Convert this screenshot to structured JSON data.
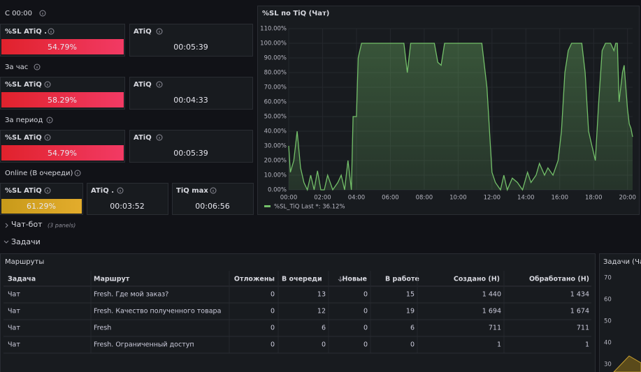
{
  "sections": {
    "today": {
      "title": "С 00:00",
      "sl_title": "%SL ATiQ .",
      "sl_value": "54.79%",
      "atiq_title": "ATiQ",
      "atiq_value": "00:05:39"
    },
    "hour": {
      "title": "За час",
      "sl_title": "%SL ATiQ",
      "sl_value": "58.29%",
      "atiq_title": "ATiQ",
      "atiq_value": "00:04:33"
    },
    "period": {
      "title": "За период",
      "sl_title": "%SL ATiQ",
      "sl_value": "54.79%",
      "atiq_title": "ATiQ",
      "atiq_value": "00:05:39"
    },
    "online": {
      "title": "Online (В очереди)",
      "sl_title": "%SL ATiQ",
      "sl_value": "61.29%",
      "atiq_title": "ATiQ .",
      "atiq_value": "00:03:52",
      "tiq_title": "TiQ max",
      "tiq_value": "00:06:56"
    }
  },
  "rows": {
    "chatbot": "Чат-бот",
    "chatbot_note": "(3 panels)",
    "tasks": "Задачи"
  },
  "chart_data": {
    "type": "line",
    "title": "%SL по TiQ (Чат)",
    "x": [
      0,
      0.1,
      0.3,
      0.5,
      0.7,
      0.9,
      1.1,
      1.3,
      1.5,
      1.7,
      1.9,
      2.1,
      2.3,
      2.6,
      2.9,
      3.1,
      3.3,
      3.5,
      3.7,
      3.8,
      4.0,
      4.1,
      4.3,
      5.0,
      6.0,
      6.8,
      7.0,
      7.2,
      8.0,
      8.6,
      8.8,
      9.0,
      9.2,
      10.0,
      11.0,
      11.4,
      11.7,
      12.0,
      12.2,
      12.5,
      12.7,
      12.9,
      13.2,
      13.5,
      13.8,
      14.1,
      14.3,
      14.6,
      14.8,
      15.1,
      15.3,
      15.6,
      15.9,
      16.1,
      16.3,
      16.5,
      16.7,
      17.0,
      17.3,
      17.5,
      17.7,
      17.9,
      18.1,
      18.3,
      18.5,
      18.7,
      19.0,
      19.2,
      19.3,
      19.4,
      19.5,
      19.7,
      19.8,
      20.0,
      20.1,
      20.2,
      20.3
    ],
    "series": [
      {
        "name": "%SL_TiQ",
        "color": "#73bf69",
        "values": [
          30,
          12,
          20,
          40,
          15,
          5,
          0,
          10,
          0,
          13,
          0,
          0,
          10,
          0,
          5,
          10,
          0,
          20,
          0,
          50,
          50,
          90,
          100,
          100,
          100,
          100,
          80,
          100,
          100,
          100,
          87,
          85,
          100,
          100,
          100,
          100,
          70,
          12,
          5,
          0,
          10,
          0,
          8,
          5,
          0,
          12,
          5,
          10,
          18,
          10,
          15,
          10,
          20,
          40,
          80,
          95,
          100,
          100,
          100,
          80,
          40,
          30,
          20,
          60,
          95,
          100,
          100,
          95,
          100,
          100,
          60,
          80,
          85,
          55,
          45,
          42,
          36.12
        ]
      }
    ],
    "legend_stat": "Last *: 36.12%",
    "xlim": [
      0,
      20.3
    ],
    "ylim": [
      0,
      110
    ],
    "xticks": [
      {
        "value": 0,
        "label": "00:00"
      },
      {
        "value": 2,
        "label": "02:00"
      },
      {
        "value": 4,
        "label": "04:00"
      },
      {
        "value": 6,
        "label": "06:00"
      },
      {
        "value": 8,
        "label": "08:00"
      },
      {
        "value": 10,
        "label": "10:00"
      },
      {
        "value": 12,
        "label": "12:00"
      },
      {
        "value": 14,
        "label": "14:00"
      },
      {
        "value": 16,
        "label": "16:00"
      },
      {
        "value": 18,
        "label": "18:00"
      },
      {
        "value": 20,
        "label": "20:00"
      }
    ],
    "yticks": [
      {
        "value": 0,
        "label": "0.00%"
      },
      {
        "value": 10,
        "label": "10.00%"
      },
      {
        "value": 20,
        "label": "20.00%"
      },
      {
        "value": 30,
        "label": "30.00%"
      },
      {
        "value": 40,
        "label": "40.00%"
      },
      {
        "value": 50,
        "label": "50.00%"
      },
      {
        "value": 60,
        "label": "60.00%"
      },
      {
        "value": 70,
        "label": "70.00%"
      },
      {
        "value": 80,
        "label": "80.00%"
      },
      {
        "value": 90,
        "label": "90.00%"
      },
      {
        "value": 100,
        "label": "100.00%"
      },
      {
        "value": 110,
        "label": "110.00%"
      }
    ],
    "grid": true
  },
  "table": {
    "title": "Маршруты",
    "header": [
      "Задача",
      "Маршрут",
      "Отложены",
      "В очереди",
      "Новые",
      "В работе",
      "Создано (Н)",
      "Обработано (Н)"
    ],
    "rows": [
      [
        "Чат",
        "Fresh. Где мой заказ?",
        "0",
        "13",
        "0",
        "15",
        "1 440",
        "1 434"
      ],
      [
        "Чат",
        "Fresh. Качество полученного товара",
        "0",
        "12",
        "0",
        "19",
        "1 694",
        "1 674"
      ],
      [
        "Чат",
        "Fresh",
        "0",
        "6",
        "0",
        "6",
        "711",
        "711"
      ],
      [
        "Чат",
        "Fresh. Ограниченный доступ",
        "0",
        "0",
        "0",
        "0",
        "1",
        "1"
      ]
    ]
  },
  "side_panel": {
    "title": "Задачи (Чат",
    "yticks": [
      "70",
      "60",
      "50",
      "40",
      "30"
    ]
  }
}
